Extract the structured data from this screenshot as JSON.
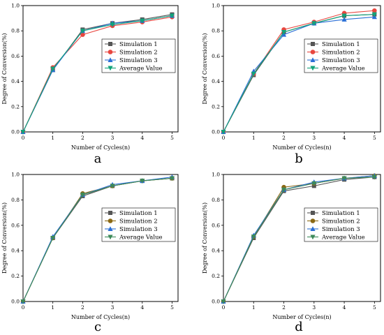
{
  "chart_data": [
    {
      "type": "line",
      "panel_label": "a",
      "xlabel": "Number of Cycles(n)",
      "ylabel": "Degree of Conversion(%)",
      "x": [
        0,
        1,
        2,
        3,
        4,
        5
      ],
      "xlim": [
        0,
        5.2
      ],
      "ylim": [
        0,
        1.0
      ],
      "xticks": [
        "0",
        "1",
        "2",
        "3",
        "4",
        "5"
      ],
      "yticks": [
        "0.0",
        "0.2",
        "0.4",
        "0.6",
        "0.8",
        "1.0"
      ],
      "legend_position": "center-right",
      "series": [
        {
          "name": "Simulation 1",
          "color": "#555555",
          "marker": "square",
          "values": [
            0,
            0.49,
            0.81,
            0.86,
            0.89,
            0.93
          ]
        },
        {
          "name": "Simulation 2",
          "color": "#e8463f",
          "marker": "circle",
          "values": [
            0,
            0.51,
            0.77,
            0.84,
            0.87,
            0.91
          ]
        },
        {
          "name": "Simulation 3",
          "color": "#2a6fd6",
          "marker": "triangle-up",
          "values": [
            0,
            0.49,
            0.8,
            0.86,
            0.88,
            0.92
          ]
        },
        {
          "name": "Average Value",
          "color": "#12a37a",
          "marker": "triangle-down",
          "values": [
            0,
            0.5,
            0.8,
            0.85,
            0.88,
            0.92
          ]
        }
      ]
    },
    {
      "type": "line",
      "panel_label": "b",
      "xlabel": "Number of Cycles(n)",
      "ylabel": "Degree of Conversion(%)",
      "x": [
        0,
        1,
        2,
        3,
        4,
        5
      ],
      "xlim": [
        0,
        5.2
      ],
      "ylim": [
        0,
        1.0
      ],
      "xticks": [
        "0",
        "1",
        "2",
        "3",
        "4",
        "5"
      ],
      "yticks": [
        "0.0",
        "0.2",
        "0.4",
        "0.6",
        "0.8",
        "1.0"
      ],
      "legend_position": "center-right",
      "series": [
        {
          "name": "Simulation 1",
          "color": "#555555",
          "marker": "square",
          "values": [
            0,
            0.45,
            0.79,
            0.86,
            0.92,
            0.93
          ]
        },
        {
          "name": "Simulation 2",
          "color": "#e8463f",
          "marker": "circle",
          "values": [
            0,
            0.46,
            0.81,
            0.87,
            0.94,
            0.96
          ]
        },
        {
          "name": "Simulation 3",
          "color": "#2a6fd6",
          "marker": "triangle-up",
          "values": [
            0,
            0.48,
            0.77,
            0.86,
            0.89,
            0.91
          ]
        },
        {
          "name": "Average Value",
          "color": "#12a37a",
          "marker": "triangle-down",
          "values": [
            0,
            0.46,
            0.79,
            0.86,
            0.92,
            0.93
          ]
        }
      ]
    },
    {
      "type": "line",
      "panel_label": "c",
      "xlabel": "Number of Cycles(n)",
      "ylabel": "Degree of Conversion(%)",
      "x": [
        0,
        1,
        2,
        3,
        4,
        5
      ],
      "xlim": [
        0,
        5.2
      ],
      "ylim": [
        0,
        1.0
      ],
      "xticks": [
        "0",
        "1",
        "2",
        "3",
        "4",
        "5"
      ],
      "yticks": [
        "0.0",
        "0.2",
        "0.4",
        "0.6",
        "0.8",
        "1.0"
      ],
      "legend_position": "center-right",
      "series": [
        {
          "name": "Simulation 1",
          "color": "#555555",
          "marker": "square",
          "values": [
            0,
            0.5,
            0.83,
            0.91,
            0.95,
            0.97
          ]
        },
        {
          "name": "Simulation 2",
          "color": "#8b6914",
          "marker": "circle",
          "values": [
            0,
            0.5,
            0.85,
            0.91,
            0.95,
            0.97
          ]
        },
        {
          "name": "Simulation 3",
          "color": "#2a6fd6",
          "marker": "triangle-up",
          "values": [
            0,
            0.51,
            0.84,
            0.92,
            0.95,
            0.98
          ]
        },
        {
          "name": "Average Value",
          "color": "#3d8a5a",
          "marker": "triangle-down",
          "values": [
            0,
            0.5,
            0.84,
            0.91,
            0.95,
            0.97
          ]
        }
      ]
    },
    {
      "type": "line",
      "panel_label": "d",
      "xlabel": "Number of Cycles(n)",
      "ylabel": "Degree of Conversion(%)",
      "x": [
        0,
        1,
        2,
        3,
        4,
        5
      ],
      "xlim": [
        0,
        5.2
      ],
      "ylim": [
        0,
        1.0
      ],
      "xticks": [
        "0",
        "1",
        "2",
        "3",
        "4",
        "5"
      ],
      "yticks": [
        "0.0",
        "0.2",
        "0.4",
        "0.6",
        "0.8",
        "1.0"
      ],
      "legend_position": "center-right",
      "series": [
        {
          "name": "Simulation 1",
          "color": "#555555",
          "marker": "square",
          "values": [
            0,
            0.5,
            0.87,
            0.91,
            0.96,
            0.98
          ]
        },
        {
          "name": "Simulation 2",
          "color": "#8b6914",
          "marker": "circle",
          "values": [
            0,
            0.51,
            0.9,
            0.93,
            0.97,
            0.99
          ]
        },
        {
          "name": "Simulation 3",
          "color": "#2a6fd6",
          "marker": "triangle-up",
          "values": [
            0,
            0.52,
            0.88,
            0.94,
            0.97,
            0.99
          ]
        },
        {
          "name": "Average Value",
          "color": "#3d8a5a",
          "marker": "triangle-down",
          "values": [
            0,
            0.51,
            0.88,
            0.93,
            0.97,
            0.98
          ]
        }
      ]
    }
  ]
}
